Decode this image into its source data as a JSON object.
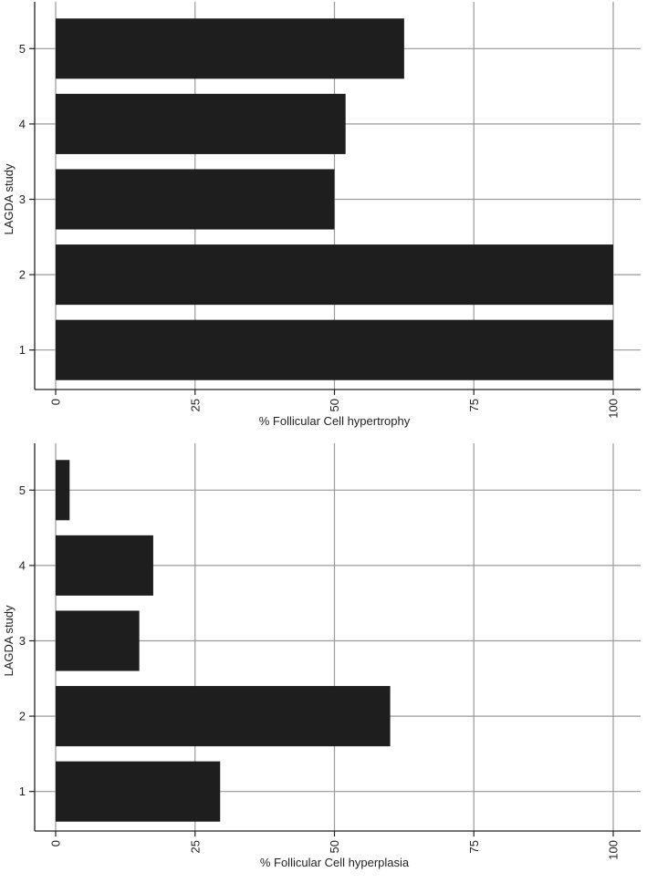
{
  "chart_data": [
    {
      "type": "bar",
      "orientation": "horizontal",
      "categories": [
        "1",
        "2",
        "3",
        "4",
        "5"
      ],
      "values": [
        100,
        100,
        50,
        52,
        62.5
      ],
      "xlabel": "% Follicular Cell hypertrophy",
      "ylabel": "LAGDA study",
      "xlim": [
        0,
        100
      ],
      "xticks": [
        "0",
        "25",
        "50",
        "75",
        "100"
      ],
      "grid": true,
      "bar_color": "#1e1e1e"
    },
    {
      "type": "bar",
      "orientation": "horizontal",
      "categories": [
        "1",
        "2",
        "3",
        "4",
        "5"
      ],
      "values": [
        29.5,
        60,
        15,
        17.5,
        2.5
      ],
      "xlabel": "% Follicular Cell hyperplasia",
      "ylabel": "LAGDA study",
      "xlim": [
        0,
        100
      ],
      "xticks": [
        "0",
        "25",
        "50",
        "75",
        "100"
      ],
      "grid": true,
      "bar_color": "#1e1e1e"
    }
  ]
}
